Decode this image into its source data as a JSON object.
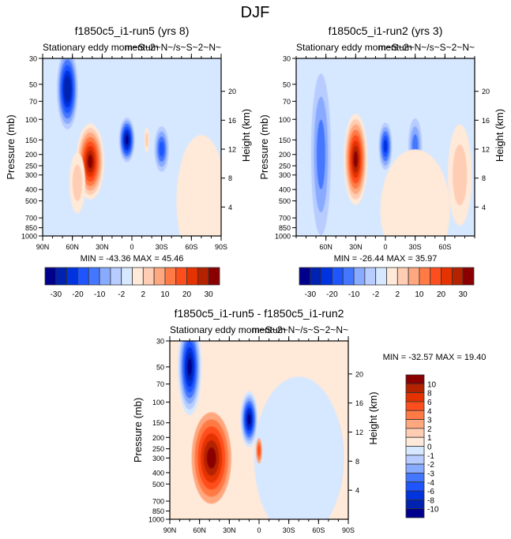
{
  "page_title": "DJF",
  "palette": [
    "#00008c",
    "#0022b0",
    "#0033e0",
    "#1f55ff",
    "#4477ff",
    "#88aaff",
    "#b8ccff",
    "#d6e8ff",
    "#ffe9d8",
    "#ffcdb3",
    "#ffa77f",
    "#ff7a45",
    "#ff4e1e",
    "#e43300",
    "#b42200",
    "#8a0000"
  ],
  "chart_data": [
    {
      "type": "heatmap",
      "id": "run5",
      "title": "f1850c5_i1-run5 (yrs 8)",
      "subtitle": "Stationary eddy momentum",
      "subtitle_units": "m~S~2~N~/s~S~2~N~",
      "ylabel": "Pressure (mb)",
      "ylabel_right": "Height (km)",
      "xlim": [
        90,
        -90
      ],
      "ylim": [
        30,
        1000
      ],
      "xticks": [
        {
          "v": 90,
          "label": "90N"
        },
        {
          "v": 60,
          "label": "60N"
        },
        {
          "v": 30,
          "label": "30N"
        },
        {
          "v": 0,
          "label": "0"
        },
        {
          "v": -30,
          "label": "30S"
        },
        {
          "v": -60,
          "label": "60S"
        },
        {
          "v": -90,
          "label": "90S"
        }
      ],
      "yticks": [
        "30",
        "50",
        "70",
        "100",
        "150",
        "200",
        "250",
        "300",
        "400",
        "500",
        "700",
        "850",
        "1000"
      ],
      "yticks_right": [
        "20",
        "16",
        "12",
        "8",
        "4"
      ],
      "min_max": "MIN = -43.36  MAX =  45.46",
      "background_level": 7,
      "blobs": [
        {
          "lat": 42,
          "p": 250,
          "rlat": 14,
          "rp": 0.55,
          "level": 13,
          "levels_down": [
            13,
            12,
            11,
            10,
            9,
            8
          ]
        },
        {
          "lat": 38,
          "p": 250,
          "rlat": 22,
          "rp": 0.85,
          "level": 10
        },
        {
          "lat": 45,
          "p": 400,
          "rlat": 26,
          "rp": 1.2,
          "level": 9
        },
        {
          "lat": 70,
          "p": 60,
          "rlat": 14,
          "rp": 1.0,
          "level": 1
        },
        {
          "lat": 4,
          "p": 150,
          "rlat": 12,
          "rp": 0.45,
          "level": 0
        },
        {
          "lat": -30,
          "p": 180,
          "rlat": 8,
          "rp": 0.5,
          "level": 3
        },
        {
          "lat": -15,
          "p": 150,
          "rlat": 3,
          "rp": 0.3,
          "level": 9
        }
      ],
      "colorbar": {
        "orientation": "horizontal",
        "labels": [
          "-30",
          "-20",
          "-10",
          "-2",
          "2",
          "10",
          "20",
          "30"
        ]
      }
    },
    {
      "type": "heatmap",
      "id": "run2",
      "title": "f1850c5_i1-run2 (yrs 3)",
      "subtitle": "Stationary eddy momentum",
      "subtitle_units": "m~S~2~N~/s~S~2~N~",
      "ylabel": "Pressure (mb)",
      "ylabel_right": "Height (km)",
      "xlim": [
        90,
        -90
      ],
      "ylim": [
        30,
        1000
      ],
      "xticks": [
        {
          "v": 60,
          "label": "60N"
        },
        {
          "v": 30,
          "label": "30N"
        },
        {
          "v": 0,
          "label": "0"
        },
        {
          "v": -30,
          "label": "30S"
        },
        {
          "v": -60,
          "label": "60S"
        }
      ],
      "yticks": [
        "30",
        "50",
        "70",
        "100",
        "150",
        "200",
        "250",
        "300",
        "400",
        "500",
        "700",
        "850",
        "1000"
      ],
      "yticks_right": [
        "20",
        "16",
        "12",
        "8",
        "4"
      ],
      "min_max": "MIN = -26.44  MAX =  35.97",
      "colorbar": {
        "orientation": "horizontal",
        "labels": [
          "-30",
          "-20",
          "-10",
          "-2",
          "2",
          "10",
          "20",
          "30"
        ]
      }
    },
    {
      "type": "heatmap",
      "id": "diff",
      "title": "f1850c5_i1-run5 - f1850c5_i1-run2",
      "subtitle": "Stationary eddy momentum",
      "subtitle_units": "m~S~2~N~/s~S~2~N~",
      "ylabel": "Pressure (mb)",
      "ylabel_right": "Height (km)",
      "xlim": [
        90,
        -90
      ],
      "ylim": [
        30,
        1000
      ],
      "xticks": [
        {
          "v": 90,
          "label": "90N"
        },
        {
          "v": 60,
          "label": "60N"
        },
        {
          "v": 30,
          "label": "30N"
        },
        {
          "v": 0,
          "label": "0"
        },
        {
          "v": -30,
          "label": "30S"
        },
        {
          "v": -60,
          "label": "60S"
        },
        {
          "v": -90,
          "label": "90S"
        }
      ],
      "yticks": [
        "30",
        "50",
        "70",
        "100",
        "150",
        "200",
        "250",
        "300",
        "400",
        "500",
        "700",
        "850",
        "1000"
      ],
      "yticks_right": [
        "20",
        "16",
        "12",
        "8",
        "4"
      ],
      "min_max": "MIN = -32.57  MAX =  19.40",
      "colorbar": {
        "orientation": "vertical",
        "labels": [
          "10",
          "8",
          "6",
          "4",
          "3",
          "2",
          "1",
          "0",
          "-1",
          "-2",
          "-3",
          "-4",
          "-6",
          "-8",
          "-10"
        ]
      }
    }
  ]
}
